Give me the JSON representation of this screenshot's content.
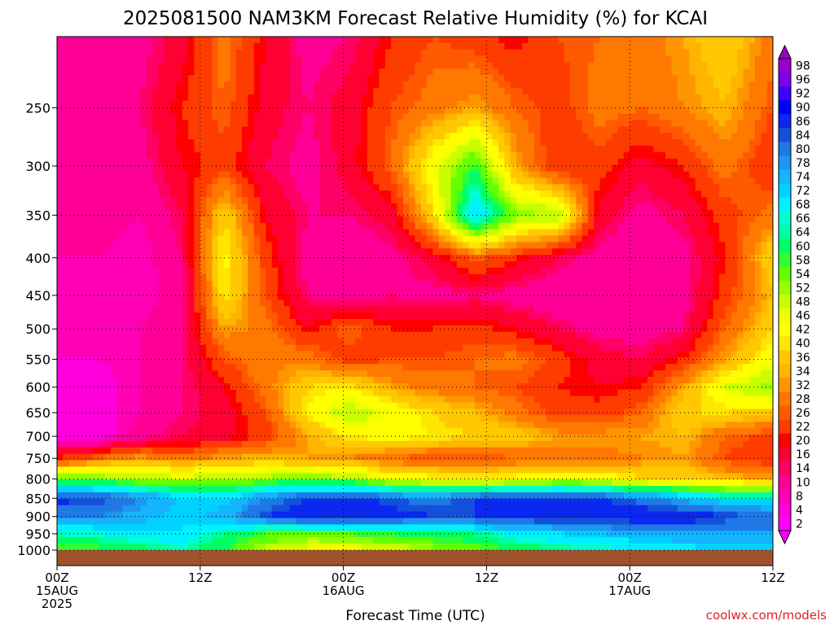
{
  "chart_data": {
    "type": "heatmap",
    "title": "2025081500 NAM3KM Forecast Relative Humidity (%) for KCAI",
    "xlabel": "Forecast Time (UTC)",
    "ylabel": "",
    "credit": "coolwx.com/models",
    "x_ticks": [
      {
        "hour": 0,
        "line1": "00Z",
        "line2": "15AUG",
        "line3": "2025"
      },
      {
        "hour": 12,
        "line1": "12Z",
        "line2": "",
        "line3": ""
      },
      {
        "hour": 24,
        "line1": "00Z",
        "line2": "16AUG",
        "line3": ""
      },
      {
        "hour": 36,
        "line1": "12Z",
        "line2": "",
        "line3": ""
      },
      {
        "hour": 48,
        "line1": "00Z",
        "line2": "17AUG",
        "line3": ""
      },
      {
        "hour": 60,
        "line1": "12Z",
        "line2": "",
        "line3": ""
      }
    ],
    "xlim": [
      0,
      60
    ],
    "y_ticks": [
      "250",
      "300",
      "350",
      "400",
      "450",
      "500",
      "550",
      "600",
      "650",
      "700",
      "750",
      "800",
      "850",
      "900",
      "950",
      "1000"
    ],
    "y_tick_values": [
      250,
      300,
      350,
      400,
      450,
      500,
      550,
      600,
      650,
      700,
      750,
      800,
      850,
      900,
      950,
      1000
    ],
    "ylim": [
      200,
      1000
    ],
    "y_scale": "log",
    "y_inverted": true,
    "grid": true,
    "colorbar": {
      "labels": [
        "98",
        "96",
        "92",
        "90",
        "86",
        "84",
        "80",
        "78",
        "74",
        "72",
        "68",
        "66",
        "64",
        "60",
        "58",
        "54",
        "52",
        "48",
        "46",
        "42",
        "40",
        "36",
        "34",
        "32",
        "28",
        "26",
        "22",
        "20",
        "16",
        "14",
        "10",
        "8",
        "4",
        "2"
      ],
      "colors": [
        "#9900cc",
        "#7f00e6",
        "#3c00ff",
        "#0000ff",
        "#0a28f0",
        "#1450dc",
        "#1e78e6",
        "#1e96f0",
        "#14b4ff",
        "#00d2ff",
        "#00f0ff",
        "#00ffd2",
        "#00ffa0",
        "#00ff64",
        "#32ff32",
        "#64ff00",
        "#96ff00",
        "#c8ff00",
        "#eeff00",
        "#ffff00",
        "#ffe600",
        "#ffc800",
        "#ffb400",
        "#ff9600",
        "#ff7800",
        "#ff5a00",
        "#ff3c00",
        "#ff0000",
        "#ff0032",
        "#ff0064",
        "#ff0096",
        "#ff00b4",
        "#ff00dc",
        "#ff00ff"
      ]
    },
    "terrain_color": "#a0522d",
    "rh_rows": [
      {
        "p": 200,
        "values": [
          10,
          10,
          12,
          18,
          30,
          20,
          12,
          14,
          22,
          26,
          24,
          20,
          26,
          28,
          30,
          34,
          40,
          30
        ]
      },
      {
        "p": 250,
        "values": [
          12,
          12,
          14,
          22,
          28,
          18,
          14,
          18,
          26,
          30,
          34,
          28,
          24,
          30,
          28,
          32,
          36,
          26
        ]
      },
      {
        "p": 300,
        "values": [
          14,
          14,
          12,
          20,
          24,
          16,
          12,
          18,
          28,
          46,
          60,
          34,
          22,
          24,
          18,
          22,
          30,
          22
        ]
      },
      {
        "p": 350,
        "values": [
          12,
          12,
          10,
          16,
          40,
          20,
          14,
          14,
          18,
          40,
          74,
          54,
          52,
          18,
          12,
          16,
          24,
          30
        ]
      },
      {
        "p": 400,
        "values": [
          10,
          10,
          8,
          14,
          44,
          24,
          12,
          10,
          12,
          18,
          28,
          22,
          16,
          12,
          10,
          12,
          22,
          40
        ]
      },
      {
        "p": 450,
        "values": [
          8,
          8,
          8,
          12,
          42,
          26,
          14,
          12,
          14,
          12,
          14,
          12,
          10,
          10,
          10,
          12,
          24,
          36
        ]
      },
      {
        "p": 500,
        "values": [
          8,
          8,
          10,
          14,
          34,
          30,
          20,
          28,
          22,
          22,
          24,
          20,
          16,
          12,
          12,
          14,
          28,
          40
        ]
      },
      {
        "p": 550,
        "values": [
          8,
          8,
          10,
          14,
          26,
          32,
          30,
          24,
          26,
          26,
          28,
          30,
          24,
          18,
          16,
          22,
          34,
          46
        ]
      },
      {
        "p": 600,
        "values": [
          6,
          6,
          10,
          14,
          20,
          30,
          40,
          42,
          34,
          30,
          28,
          26,
          22,
          20,
          22,
          34,
          48,
          54
        ]
      },
      {
        "p": 650,
        "values": [
          6,
          6,
          10,
          14,
          18,
          26,
          42,
          52,
          46,
          40,
          36,
          30,
          24,
          24,
          28,
          40,
          40,
          38
        ]
      },
      {
        "p": 700,
        "values": [
          6,
          6,
          12,
          16,
          18,
          24,
          34,
          42,
          44,
          42,
          40,
          38,
          34,
          34,
          34,
          36,
          28,
          24
        ]
      },
      {
        "p": 750,
        "values": [
          22,
          28,
          34,
          30,
          34,
          36,
          34,
          32,
          28,
          26,
          26,
          28,
          30,
          30,
          32,
          34,
          26,
          22
        ]
      },
      {
        "p": 800,
        "values": [
          58,
          56,
          52,
          50,
          52,
          54,
          56,
          54,
          46,
          44,
          42,
          44,
          46,
          46,
          40,
          40,
          36,
          34
        ]
      },
      {
        "p": 850,
        "values": [
          88,
          86,
          80,
          74,
          72,
          80,
          86,
          88,
          84,
          82,
          86,
          88,
          88,
          86,
          82,
          76,
          70,
          70
        ]
      },
      {
        "p": 900,
        "values": [
          80,
          80,
          76,
          72,
          76,
          86,
          90,
          90,
          88,
          86,
          86,
          88,
          90,
          90,
          90,
          90,
          86,
          84
        ]
      },
      {
        "p": 950,
        "values": [
          66,
          68,
          70,
          72,
          64,
          58,
          56,
          58,
          60,
          62,
          64,
          70,
          72,
          74,
          76,
          78,
          78,
          78
        ]
      },
      {
        "p": 1000,
        "values": [
          56,
          58,
          62,
          66,
          60,
          50,
          46,
          44,
          48,
          52,
          56,
          60,
          64,
          66,
          68,
          70,
          72,
          72
        ]
      }
    ],
    "rh_row_hours": [
      0,
      3.5,
      7,
      10.5,
      14,
      17.5,
      21,
      24.5,
      28,
      31.5,
      35,
      38.5,
      42,
      45.5,
      49,
      52.5,
      56,
      60
    ]
  }
}
